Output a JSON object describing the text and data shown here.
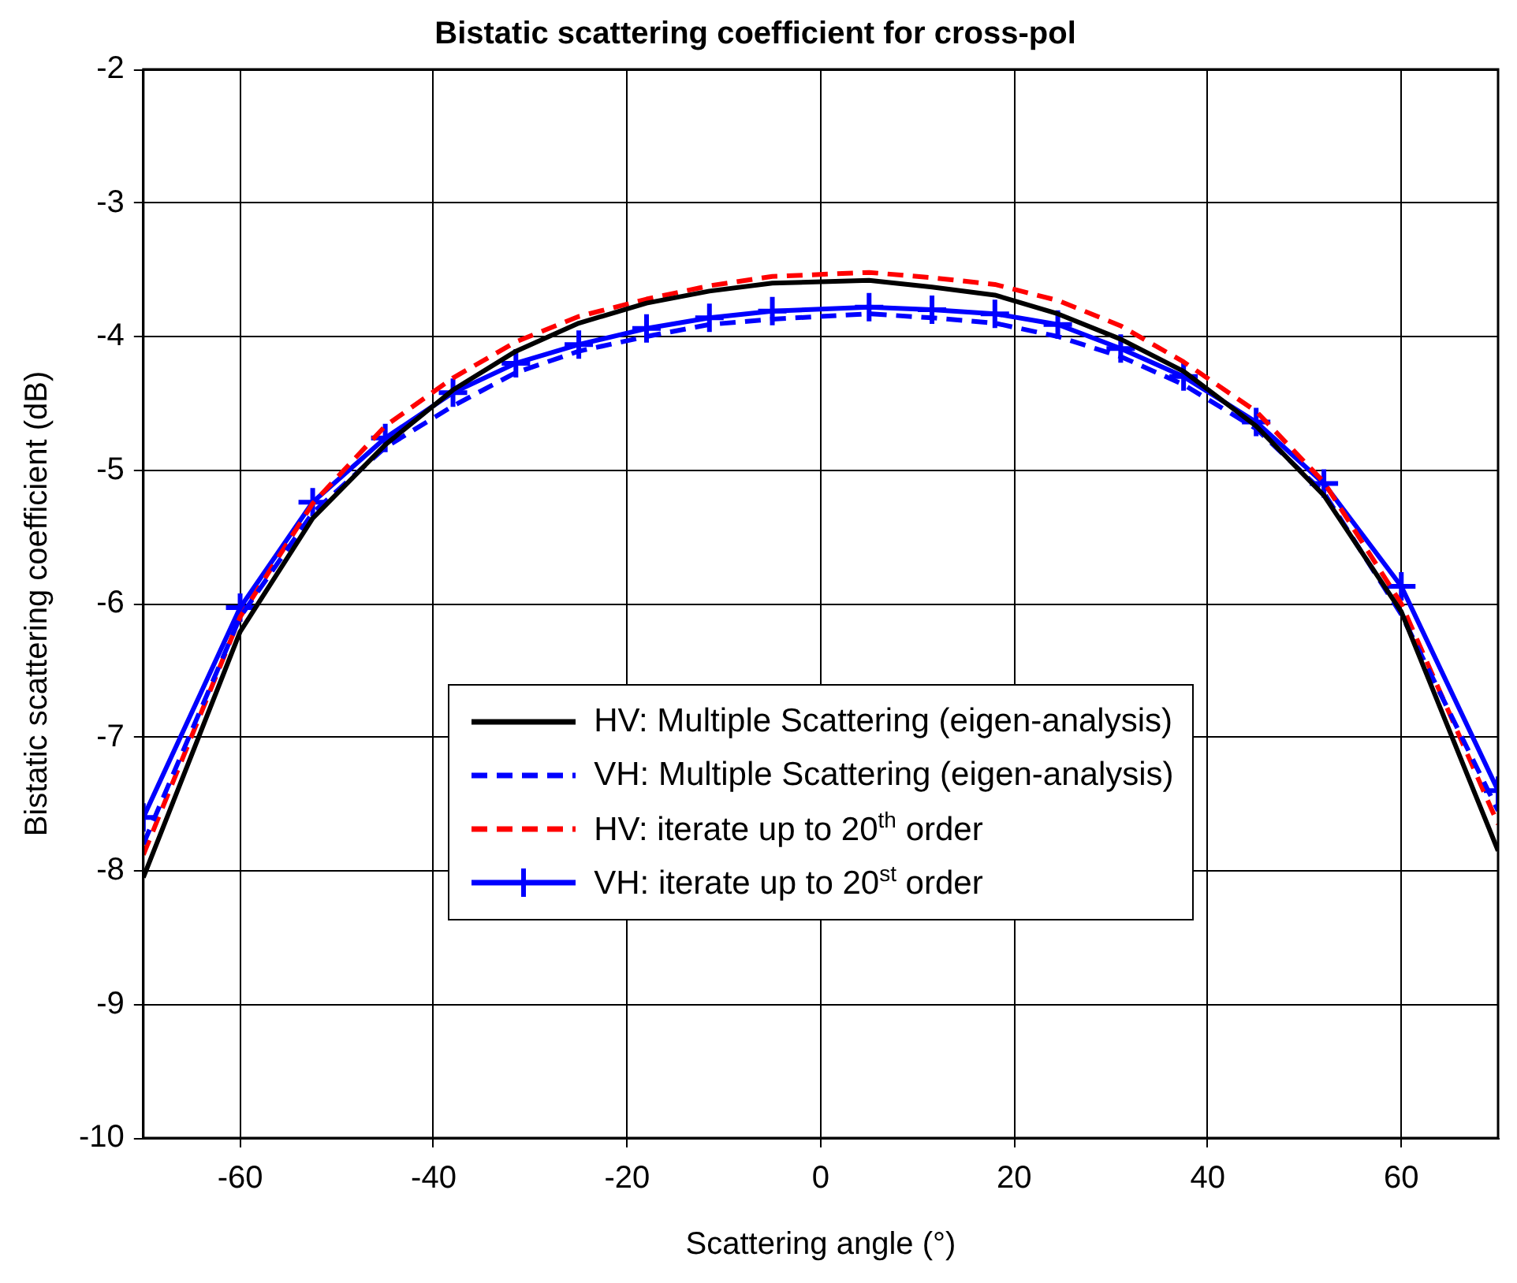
{
  "chart_data": {
    "type": "line",
    "title": "Bistatic scattering coefficient for cross-pol",
    "xlabel": "Scattering angle (°)",
    "ylabel": "Bistatic scattering coefficient (dB)",
    "x": [
      -70,
      -60,
      -52.5,
      -45,
      -38,
      -31.5,
      -25,
      -18,
      -11.5,
      -5,
      5,
      11.5,
      18,
      24.5,
      31,
      37.5,
      45,
      52,
      60,
      70
    ],
    "xlim": [
      -70,
      70
    ],
    "xticks": [
      -60,
      -40,
      -20,
      0,
      20,
      40,
      60
    ],
    "ylim": [
      -10,
      -2
    ],
    "yticks": [
      -10,
      -9,
      -8,
      -7,
      -6,
      -5,
      -4,
      -3,
      -2
    ],
    "grid": true,
    "legend": "bottom",
    "marker": "none",
    "series": [
      {
        "name": "HV: Multiple Scattering (eigen-analysis)",
        "color": "#000000",
        "line_style": "solid",
        "values": [
          -8.05,
          -6.21,
          -5.36,
          -4.81,
          -4.4,
          -4.11,
          -3.9,
          -3.75,
          -3.66,
          -3.6,
          -3.58,
          -3.63,
          -3.69,
          -3.83,
          -4.02,
          -4.26,
          -4.67,
          -5.19,
          -6.06,
          -7.85
        ]
      },
      {
        "name": "VH: Multiple Scattering (eigen-analysis)",
        "color": "#0000ff",
        "line_style": "dashed",
        "values": [
          -7.8,
          -6.1,
          -5.32,
          -4.83,
          -4.52,
          -4.27,
          -4.11,
          -4.0,
          -3.91,
          -3.87,
          -3.83,
          -3.86,
          -3.9,
          -4.0,
          -4.15,
          -4.36,
          -4.69,
          -5.17,
          -6.08,
          -7.55
        ]
      },
      {
        "name": "HV: iterate up to 20$^{th}$ order",
        "color": "#ff0000",
        "line_style": "dashed",
        "values": [
          -7.88,
          -6.1,
          -5.25,
          -4.67,
          -4.31,
          -4.04,
          -3.85,
          -3.72,
          -3.62,
          -3.55,
          -3.52,
          -3.56,
          -3.61,
          -3.73,
          -3.92,
          -4.19,
          -4.56,
          -5.09,
          -6.0,
          -7.65
        ]
      },
      {
        "name": "VH: iterate up to 20$^{st}$ order",
        "color": "#0000ff",
        "line_style": "solid",
        "marker": "cross",
        "values": [
          -7.6,
          -6.03,
          -5.24,
          -4.76,
          -4.42,
          -4.2,
          -4.06,
          -3.94,
          -3.86,
          -3.81,
          -3.78,
          -3.8,
          -3.83,
          -3.91,
          -4.09,
          -4.3,
          -4.64,
          -5.1,
          -5.87,
          -7.4
        ]
      }
    ]
  }
}
